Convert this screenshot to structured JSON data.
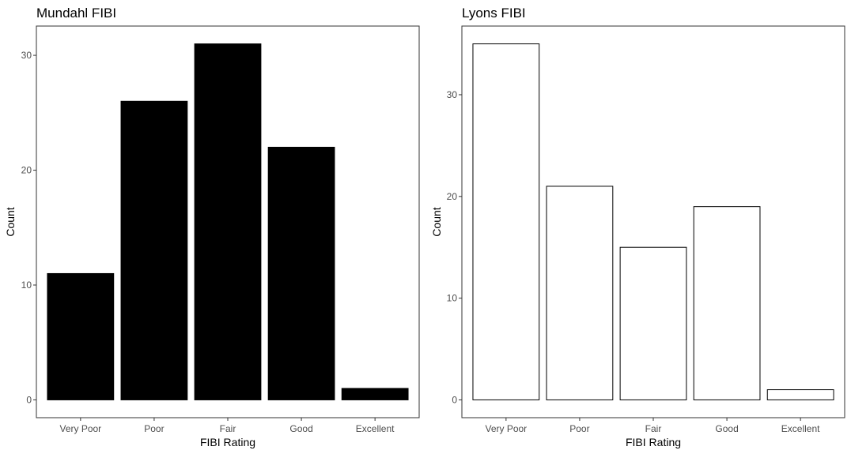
{
  "chart_data": [
    {
      "type": "bar",
      "title": "Mundahl FIBI",
      "xlabel": "FIBI Rating",
      "ylabel": "Count",
      "categories": [
        "Very Poor",
        "Poor",
        "Fair",
        "Good",
        "Excellent"
      ],
      "values": [
        11,
        26,
        31,
        22,
        1
      ],
      "yticks": [
        0,
        10,
        20,
        30
      ],
      "ylim": [
        -1.55,
        32.55
      ],
      "fill": "#000000",
      "stroke": "#000000",
      "grid": false
    },
    {
      "type": "bar",
      "title": "Lyons FIBI",
      "xlabel": "FIBI Rating",
      "ylabel": "Count",
      "categories": [
        "Very Poor",
        "Poor",
        "Fair",
        "Good",
        "Excellent"
      ],
      "values": [
        35,
        21,
        15,
        19,
        1
      ],
      "yticks": [
        0,
        10,
        20,
        30
      ],
      "ylim": [
        -1.75,
        36.75
      ],
      "fill": "#ffffff",
      "stroke": "#000000",
      "grid": false
    }
  ]
}
